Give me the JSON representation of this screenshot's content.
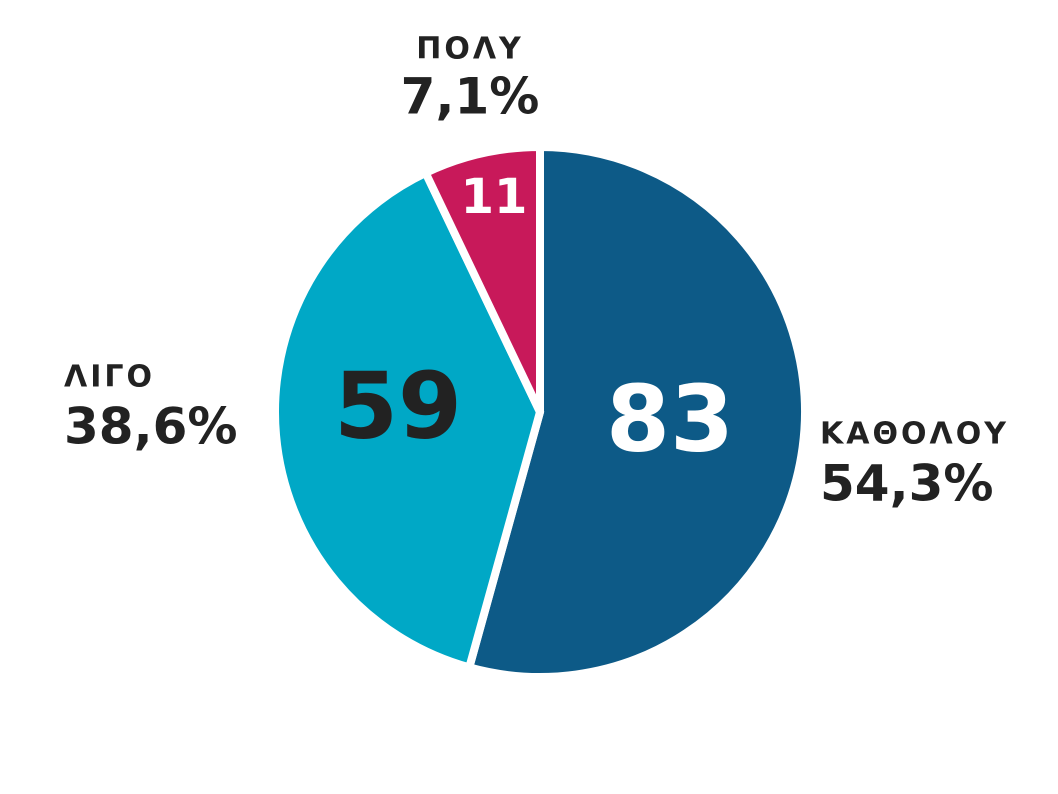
{
  "chart_data": {
    "type": "pie",
    "categories": [
      "ΚΑΘΟΛΟΥ",
      "ΛΙΓΟ",
      "ΠΟΛΥ"
    ],
    "values": [
      54.3,
      38.6,
      7.1
    ],
    "value_labels": [
      "54,3%",
      "38,6%",
      "7,1%"
    ],
    "counts": [
      83,
      59,
      11
    ],
    "colors": [
      "#0d5a87",
      "#00a8c6",
      "#c8195a"
    ]
  }
}
